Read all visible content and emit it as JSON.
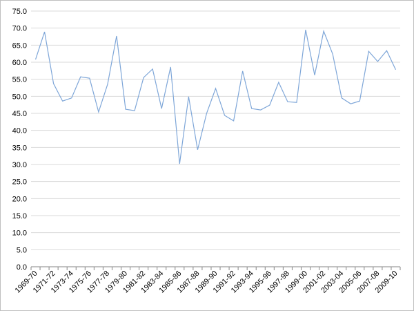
{
  "chart_data": {
    "type": "line",
    "categories": [
      "1969-70",
      null,
      "1971-72",
      null,
      "1973-74",
      null,
      "1975-76",
      null,
      "1977-78",
      null,
      "1979-80",
      null,
      "1981-82",
      null,
      "1983-84",
      null,
      "1985-86",
      null,
      "1987-88",
      null,
      "1989-90",
      null,
      "1991-92",
      null,
      "1993-94",
      null,
      "1995-96",
      null,
      "1997-98",
      null,
      "1999-00",
      null,
      "2001-02",
      null,
      "2003-04",
      null,
      "2005-06",
      null,
      "2007-08",
      null,
      "2009-10"
    ],
    "values": [
      60.8,
      68.9,
      53.7,
      48.6,
      49.5,
      55.7,
      55.3,
      45.4,
      53.5,
      67.7,
      46.2,
      45.8,
      55.5,
      58.0,
      46.4,
      58.6,
      30.2,
      49.9,
      34.3,
      45.0,
      52.3,
      44.4,
      42.8,
      57.4,
      46.4,
      46.0,
      47.4,
      54.1,
      48.4,
      48.2,
      69.5,
      56.2,
      69.1,
      62.4,
      49.5,
      47.8,
      48.6,
      63.2,
      60.2,
      63.4,
      57.8
    ],
    "color": "#7ea6d8",
    "ylim": [
      0,
      75
    ],
    "yticks": [
      {
        "value": 0,
        "label": "0.0"
      },
      {
        "value": 5,
        "label": "5.0"
      },
      {
        "value": 10,
        "label": "10.0"
      },
      {
        "value": 15,
        "label": "15.0"
      },
      {
        "value": 20,
        "label": "20.0"
      },
      {
        "value": 25,
        "label": "25.0"
      },
      {
        "value": 30,
        "label": "30.0"
      },
      {
        "value": 35,
        "label": "35.0"
      },
      {
        "value": 40,
        "label": "40.0"
      },
      {
        "value": 45,
        "label": "45.0"
      },
      {
        "value": 50,
        "label": "50.0"
      },
      {
        "value": 55,
        "label": "55.0"
      },
      {
        "value": 60,
        "label": "60.0"
      },
      {
        "value": 65,
        "label": "65.0"
      },
      {
        "value": 70,
        "label": "70.0"
      },
      {
        "value": 75,
        "label": "75.0"
      }
    ],
    "grid": true
  }
}
